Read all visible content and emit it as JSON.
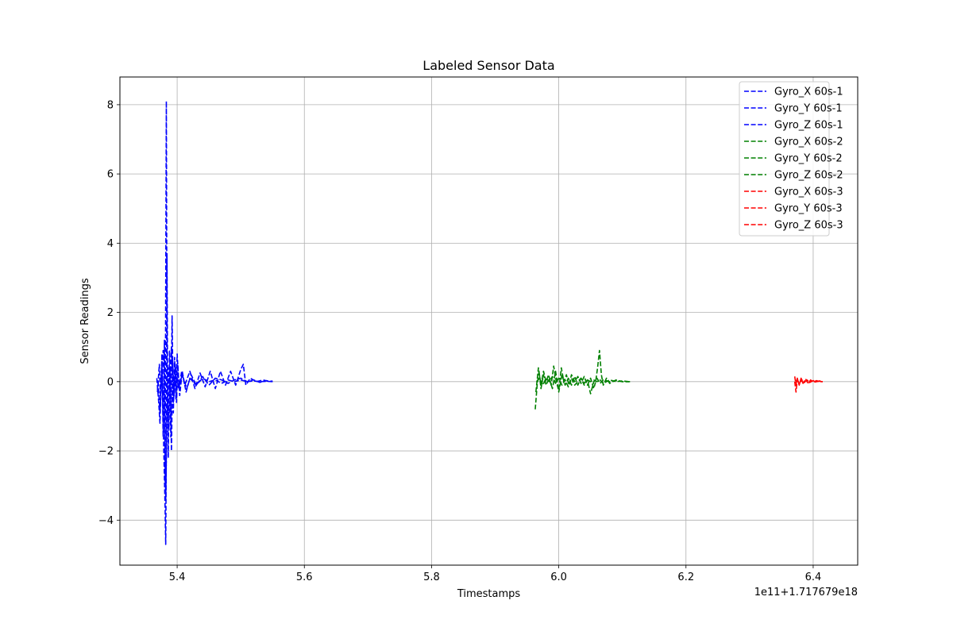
{
  "chart_data": {
    "type": "line",
    "title": "Labeled Sensor Data",
    "xlabel": "Timestamps",
    "ylabel": "Sensor Readings",
    "x_offset_label": "1e11+1.717679e18",
    "xlim": [
      5.31,
      6.47
    ],
    "ylim": [
      -5.3,
      8.8
    ],
    "x_ticks": [
      5.4,
      5.6,
      5.8,
      6.0,
      6.2,
      6.4
    ],
    "x_tick_labels": [
      "5.4",
      "5.6",
      "5.8",
      "6.0",
      "6.2",
      "6.4"
    ],
    "y_ticks": [
      -4,
      -2,
      0,
      2,
      4,
      6,
      8
    ],
    "y_tick_labels": [
      "−4",
      "−2",
      "0",
      "2",
      "4",
      "6",
      "8"
    ],
    "grid": true,
    "legend_position": "top-right",
    "line_style": "dashed",
    "series": [
      {
        "name": "Gyro_X 60s-1",
        "color": "#0000ff",
        "points": [
          [
            5.368,
            0.1
          ],
          [
            5.371,
            -0.6
          ],
          [
            5.373,
            -1.2
          ],
          [
            5.375,
            0.3
          ],
          [
            5.378,
            0.9
          ],
          [
            5.38,
            -0.8
          ],
          [
            5.382,
            -3.4
          ],
          [
            5.384,
            -1.0
          ],
          [
            5.386,
            0.4
          ],
          [
            5.388,
            -0.3
          ],
          [
            5.391,
            1.0
          ],
          [
            5.394,
            -0.6
          ],
          [
            5.398,
            0.4
          ],
          [
            5.402,
            -0.2
          ],
          [
            5.408,
            0.2
          ],
          [
            5.415,
            -0.2
          ],
          [
            5.422,
            0.2
          ],
          [
            5.43,
            -0.1
          ],
          [
            5.44,
            0.15
          ],
          [
            5.45,
            -0.1
          ],
          [
            5.46,
            0.1
          ],
          [
            5.47,
            0.05
          ],
          [
            5.48,
            -0.05
          ],
          [
            5.49,
            0.05
          ],
          [
            5.5,
            0.1
          ],
          [
            5.51,
            0.0
          ],
          [
            5.52,
            0.05
          ],
          [
            5.53,
            -0.02
          ],
          [
            5.54,
            0.03
          ],
          [
            5.55,
            0.0
          ]
        ]
      },
      {
        "name": "Gyro_Y 60s-1",
        "color": "#0000ff",
        "points": [
          [
            5.369,
            -0.3
          ],
          [
            5.372,
            0.5
          ],
          [
            5.374,
            -0.7
          ],
          [
            5.376,
            0.8
          ],
          [
            5.378,
            -1.6
          ],
          [
            5.38,
            1.2
          ],
          [
            5.381,
            -3.0
          ],
          [
            5.382,
            2.6
          ],
          [
            5.383,
            8.1
          ],
          [
            5.384,
            0.6
          ],
          [
            5.386,
            -2.2
          ],
          [
            5.388,
            0.9
          ],
          [
            5.39,
            -1.6
          ],
          [
            5.392,
            1.9
          ],
          [
            5.394,
            -0.9
          ],
          [
            5.396,
            0.7
          ],
          [
            5.398,
            -0.5
          ],
          [
            5.4,
            0.8
          ],
          [
            5.403,
            -0.2
          ],
          [
            5.407,
            0.3
          ],
          [
            5.412,
            -0.1
          ],
          [
            5.42,
            0.3
          ],
          [
            5.428,
            -0.2
          ],
          [
            5.436,
            0.25
          ],
          [
            5.444,
            -0.15
          ],
          [
            5.452,
            0.3
          ],
          [
            5.46,
            -0.2
          ],
          [
            5.468,
            0.3
          ],
          [
            5.476,
            -0.1
          ],
          [
            5.484,
            0.3
          ],
          [
            5.492,
            -0.1
          ],
          [
            5.5,
            0.35
          ],
          [
            5.504,
            0.5
          ],
          [
            5.508,
            -0.1
          ],
          [
            5.515,
            0.1
          ],
          [
            5.525,
            0.0
          ],
          [
            5.535,
            0.05
          ],
          [
            5.545,
            0.0
          ],
          [
            5.55,
            0.02
          ]
        ]
      },
      {
        "name": "Gyro_Z 60s-1",
        "color": "#0000ff",
        "points": [
          [
            5.37,
            0.0
          ],
          [
            5.373,
            -0.9
          ],
          [
            5.376,
            0.5
          ],
          [
            5.379,
            -2.0
          ],
          [
            5.381,
            -3.6
          ],
          [
            5.382,
            -4.7
          ],
          [
            5.383,
            -1.8
          ],
          [
            5.384,
            3.7
          ],
          [
            5.385,
            -0.4
          ],
          [
            5.387,
            -1.4
          ],
          [
            5.389,
            0.3
          ],
          [
            5.391,
            -2.0
          ],
          [
            5.393,
            0.6
          ],
          [
            5.395,
            -0.4
          ],
          [
            5.397,
            0.5
          ],
          [
            5.399,
            -0.6
          ],
          [
            5.401,
            0.5
          ],
          [
            5.404,
            -0.4
          ],
          [
            5.408,
            0.3
          ],
          [
            5.414,
            -0.3
          ],
          [
            5.42,
            0.1
          ],
          [
            5.43,
            -0.1
          ],
          [
            5.44,
            0.1
          ],
          [
            5.45,
            0.0
          ],
          [
            5.46,
            0.05
          ],
          [
            5.47,
            -0.05
          ],
          [
            5.48,
            0.05
          ],
          [
            5.49,
            0.0
          ],
          [
            5.5,
            0.05
          ],
          [
            5.51,
            0.0
          ],
          [
            5.52,
            0.02
          ],
          [
            5.53,
            0.0
          ],
          [
            5.54,
            0.01
          ],
          [
            5.55,
            0.0
          ]
        ]
      },
      {
        "name": "Gyro_X 60s-2",
        "color": "#008000",
        "points": [
          [
            5.963,
            -0.8
          ],
          [
            5.966,
            -0.1
          ],
          [
            5.969,
            0.3
          ],
          [
            5.972,
            -0.2
          ],
          [
            5.976,
            0.2
          ],
          [
            5.98,
            -0.1
          ],
          [
            5.985,
            0.1
          ],
          [
            5.99,
            -0.2
          ],
          [
            5.995,
            0.3
          ],
          [
            6.0,
            -0.3
          ],
          [
            6.005,
            0.2
          ],
          [
            6.01,
            -0.1
          ],
          [
            6.015,
            0.1
          ],
          [
            6.02,
            -0.1
          ],
          [
            6.025,
            0.15
          ],
          [
            6.03,
            -0.1
          ],
          [
            6.035,
            0.1
          ],
          [
            6.04,
            -0.05
          ],
          [
            6.045,
            0.05
          ],
          [
            6.05,
            0.0
          ],
          [
            6.055,
            0.05
          ],
          [
            6.06,
            0.0
          ],
          [
            6.065,
            0.05
          ],
          [
            6.07,
            -0.05
          ],
          [
            6.08,
            0.05
          ],
          [
            6.09,
            0.0
          ],
          [
            6.1,
            0.02
          ],
          [
            6.11,
            0.0
          ]
        ]
      },
      {
        "name": "Gyro_Y 60s-2",
        "color": "#008000",
        "points": [
          [
            5.964,
            -0.3
          ],
          [
            5.968,
            0.4
          ],
          [
            5.972,
            -0.1
          ],
          [
            5.976,
            0.3
          ],
          [
            5.98,
            0.0
          ],
          [
            5.984,
            0.2
          ],
          [
            5.988,
            -0.1
          ],
          [
            5.992,
            0.45
          ],
          [
            5.996,
            0.0
          ],
          [
            6.0,
            -0.25
          ],
          [
            6.004,
            0.4
          ],
          [
            6.008,
            0.0
          ],
          [
            6.012,
            0.2
          ],
          [
            6.016,
            -0.1
          ],
          [
            6.02,
            0.2
          ],
          [
            6.025,
            0.0
          ],
          [
            6.03,
            0.15
          ],
          [
            6.035,
            -0.05
          ],
          [
            6.04,
            0.15
          ],
          [
            6.045,
            -0.1
          ],
          [
            6.05,
            0.1
          ],
          [
            6.055,
            -0.2
          ],
          [
            6.058,
            0.0
          ],
          [
            6.061,
            0.4
          ],
          [
            6.064,
            0.9
          ],
          [
            6.067,
            0.2
          ],
          [
            6.07,
            -0.1
          ],
          [
            6.075,
            0.1
          ],
          [
            6.08,
            -0.05
          ],
          [
            6.09,
            0.05
          ],
          [
            6.1,
            0.0
          ],
          [
            6.112,
            0.0
          ]
        ]
      },
      {
        "name": "Gyro_Z 60s-2",
        "color": "#008000",
        "points": [
          [
            5.965,
            0.0
          ],
          [
            5.97,
            0.1
          ],
          [
            5.975,
            -0.1
          ],
          [
            5.98,
            0.1
          ],
          [
            5.985,
            0.0
          ],
          [
            5.99,
            0.15
          ],
          [
            5.995,
            -0.05
          ],
          [
            6.0,
            0.1
          ],
          [
            6.005,
            -0.1
          ],
          [
            6.01,
            0.05
          ],
          [
            6.015,
            -0.15
          ],
          [
            6.02,
            0.1
          ],
          [
            6.025,
            -0.1
          ],
          [
            6.03,
            0.0
          ],
          [
            6.035,
            0.1
          ],
          [
            6.04,
            -0.1
          ],
          [
            6.045,
            0.05
          ],
          [
            6.05,
            -0.35
          ],
          [
            6.055,
            0.0
          ],
          [
            6.06,
            0.1
          ],
          [
            6.065,
            -0.05
          ],
          [
            6.07,
            0.05
          ],
          [
            6.08,
            0.0
          ],
          [
            6.09,
            0.03
          ],
          [
            6.1,
            0.0
          ],
          [
            6.11,
            0.0
          ]
        ]
      },
      {
        "name": "Gyro_X 60s-3",
        "color": "#ff0000",
        "points": [
          [
            6.371,
            0.0
          ],
          [
            6.373,
            -0.3
          ],
          [
            6.375,
            0.05
          ],
          [
            6.378,
            -0.05
          ],
          [
            6.382,
            0.05
          ],
          [
            6.386,
            0.0
          ],
          [
            6.39,
            0.05
          ],
          [
            6.395,
            -0.02
          ],
          [
            6.4,
            0.03
          ],
          [
            6.405,
            0.0
          ],
          [
            6.41,
            0.02
          ],
          [
            6.415,
            0.0
          ]
        ]
      },
      {
        "name": "Gyro_Y 60s-3",
        "color": "#ff0000",
        "points": [
          [
            6.371,
            0.15
          ],
          [
            6.373,
            -0.1
          ],
          [
            6.375,
            0.1
          ],
          [
            6.378,
            -0.1
          ],
          [
            6.381,
            0.1
          ],
          [
            6.384,
            -0.05
          ],
          [
            6.388,
            0.08
          ],
          [
            6.392,
            -0.05
          ],
          [
            6.396,
            0.05
          ],
          [
            6.4,
            -0.02
          ],
          [
            6.405,
            0.03
          ],
          [
            6.41,
            0.0
          ],
          [
            6.415,
            0.0
          ]
        ]
      },
      {
        "name": "Gyro_Z 60s-3",
        "color": "#ff0000",
        "points": [
          [
            6.372,
            -0.05
          ],
          [
            6.375,
            0.08
          ],
          [
            6.378,
            -0.08
          ],
          [
            6.381,
            0.05
          ],
          [
            6.385,
            -0.05
          ],
          [
            6.389,
            0.04
          ],
          [
            6.393,
            -0.03
          ],
          [
            6.398,
            0.02
          ],
          [
            6.403,
            -0.01
          ],
          [
            6.408,
            0.01
          ],
          [
            6.415,
            0.0
          ]
        ]
      }
    ]
  }
}
